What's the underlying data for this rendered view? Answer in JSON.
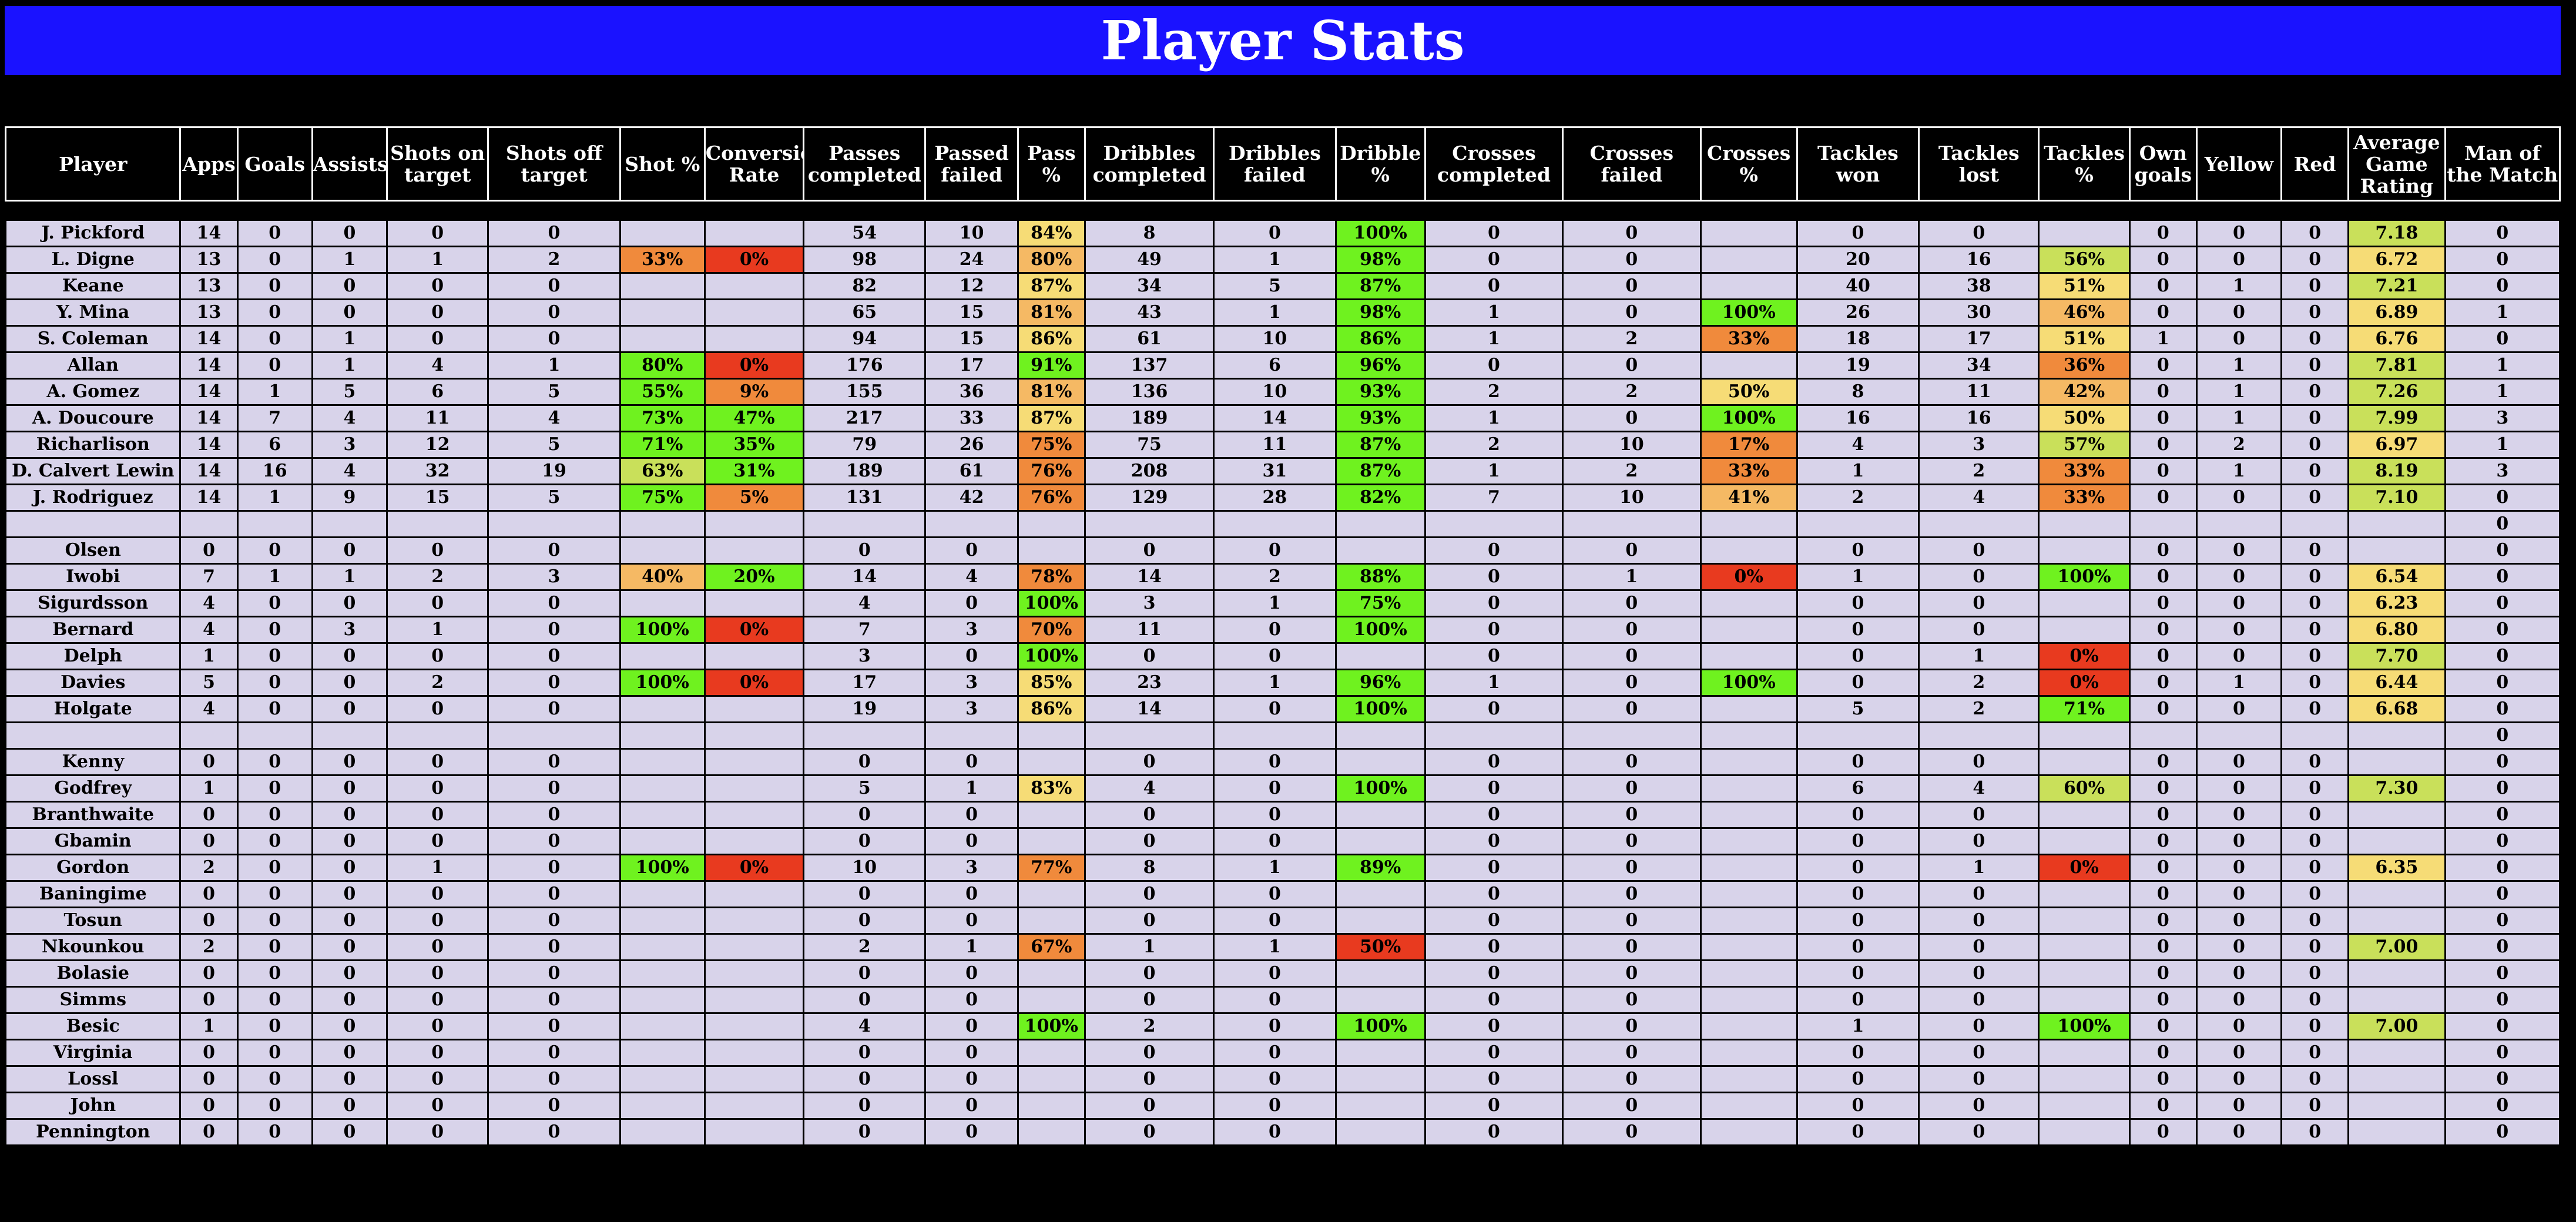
{
  "title": "Player Stats",
  "columns": [
    "Player",
    "Apps",
    "Goals",
    "Assists",
    "Shots on target",
    "Shots off target",
    "Shot %",
    "Conversion Rate",
    "Passes completed",
    "Passed failed",
    "Pass %",
    "Dribbles completed",
    "Dribbles failed",
    "Dribble %",
    "Crosses completed",
    "Crosses failed",
    "Crosses %",
    "Tackles won",
    "Tackles lost",
    "Tackles %",
    "Own goals",
    "Yellow",
    "Red",
    "Average Game Rating",
    "Man of the Match"
  ],
  "rows": [
    [
      "J. Pickford",
      "14",
      "0",
      "0",
      "0",
      "0",
      "",
      "",
      "54",
      "10",
      "84%",
      "8",
      "0",
      "100%",
      "0",
      "0",
      "",
      "0",
      "0",
      "",
      "0",
      "0",
      "0",
      "7.18",
      "0"
    ],
    [
      "L. Digne",
      "13",
      "0",
      "1",
      "1",
      "2",
      "33%",
      "0%",
      "98",
      "24",
      "80%",
      "49",
      "1",
      "98%",
      "0",
      "0",
      "",
      "20",
      "16",
      "56%",
      "0",
      "0",
      "0",
      "6.72",
      "0"
    ],
    [
      "Keane",
      "13",
      "0",
      "0",
      "0",
      "0",
      "",
      "",
      "82",
      "12",
      "87%",
      "34",
      "5",
      "87%",
      "0",
      "0",
      "",
      "40",
      "38",
      "51%",
      "0",
      "1",
      "0",
      "7.21",
      "0"
    ],
    [
      "Y. Mina",
      "13",
      "0",
      "0",
      "0",
      "0",
      "",
      "",
      "65",
      "15",
      "81%",
      "43",
      "1",
      "98%",
      "1",
      "0",
      "100%",
      "26",
      "30",
      "46%",
      "0",
      "0",
      "0",
      "6.89",
      "1"
    ],
    [
      "S. Coleman",
      "14",
      "0",
      "1",
      "0",
      "0",
      "",
      "",
      "94",
      "15",
      "86%",
      "61",
      "10",
      "86%",
      "1",
      "2",
      "33%",
      "18",
      "17",
      "51%",
      "1",
      "0",
      "0",
      "6.76",
      "0"
    ],
    [
      "Allan",
      "14",
      "0",
      "1",
      "4",
      "1",
      "80%",
      "0%",
      "176",
      "17",
      "91%",
      "137",
      "6",
      "96%",
      "0",
      "0",
      "",
      "19",
      "34",
      "36%",
      "0",
      "1",
      "0",
      "7.81",
      "1"
    ],
    [
      "A. Gomez",
      "14",
      "1",
      "5",
      "6",
      "5",
      "55%",
      "9%",
      "155",
      "36",
      "81%",
      "136",
      "10",
      "93%",
      "2",
      "2",
      "50%",
      "8",
      "11",
      "42%",
      "0",
      "1",
      "0",
      "7.26",
      "1"
    ],
    [
      "A. Doucoure",
      "14",
      "7",
      "4",
      "11",
      "4",
      "73%",
      "47%",
      "217",
      "33",
      "87%",
      "189",
      "14",
      "93%",
      "1",
      "0",
      "100%",
      "16",
      "16",
      "50%",
      "0",
      "1",
      "0",
      "7.99",
      "3"
    ],
    [
      "Richarlison",
      "14",
      "6",
      "3",
      "12",
      "5",
      "71%",
      "35%",
      "79",
      "26",
      "75%",
      "75",
      "11",
      "87%",
      "2",
      "10",
      "17%",
      "4",
      "3",
      "57%",
      "0",
      "2",
      "0",
      "6.97",
      "1"
    ],
    [
      "D. Calvert Lewin",
      "14",
      "16",
      "4",
      "32",
      "19",
      "63%",
      "31%",
      "189",
      "61",
      "76%",
      "208",
      "31",
      "87%",
      "1",
      "2",
      "33%",
      "1",
      "2",
      "33%",
      "0",
      "1",
      "0",
      "8.19",
      "3"
    ],
    [
      "J. Rodriguez",
      "14",
      "1",
      "9",
      "15",
      "5",
      "75%",
      "5%",
      "131",
      "42",
      "76%",
      "129",
      "28",
      "82%",
      "7",
      "10",
      "41%",
      "2",
      "4",
      "33%",
      "0",
      "0",
      "0",
      "7.10",
      "0"
    ],
    [
      "",
      "",
      "",
      "",
      "",
      "",
      "",
      "",
      "",
      "",
      "",
      "",
      "",
      "",
      "",
      "",
      "",
      "",
      "",
      "",
      "",
      "",
      "",
      "",
      "0"
    ],
    [
      "Olsen",
      "0",
      "0",
      "0",
      "0",
      "0",
      "",
      "",
      "0",
      "0",
      "",
      "0",
      "0",
      "",
      "0",
      "0",
      "",
      "0",
      "0",
      "",
      "0",
      "0",
      "0",
      "",
      "0"
    ],
    [
      "Iwobi",
      "7",
      "1",
      "1",
      "2",
      "3",
      "40%",
      "20%",
      "14",
      "4",
      "78%",
      "14",
      "2",
      "88%",
      "0",
      "1",
      "0%",
      "1",
      "0",
      "100%",
      "0",
      "0",
      "0",
      "6.54",
      "0"
    ],
    [
      "Sigurdsson",
      "4",
      "0",
      "0",
      "0",
      "0",
      "",
      "",
      "4",
      "0",
      "100%",
      "3",
      "1",
      "75%",
      "0",
      "0",
      "",
      "0",
      "0",
      "",
      "0",
      "0",
      "0",
      "6.23",
      "0"
    ],
    [
      "Bernard",
      "4",
      "0",
      "3",
      "1",
      "0",
      "100%",
      "0%",
      "7",
      "3",
      "70%",
      "11",
      "0",
      "100%",
      "0",
      "0",
      "",
      "0",
      "0",
      "",
      "0",
      "0",
      "0",
      "6.80",
      "0"
    ],
    [
      "Delph",
      "1",
      "0",
      "0",
      "0",
      "0",
      "",
      "",
      "3",
      "0",
      "100%",
      "0",
      "0",
      "",
      "0",
      "0",
      "",
      "0",
      "1",
      "0%",
      "0",
      "0",
      "0",
      "7.70",
      "0"
    ],
    [
      "Davies",
      "5",
      "0",
      "0",
      "2",
      "0",
      "100%",
      "0%",
      "17",
      "3",
      "85%",
      "23",
      "1",
      "96%",
      "1",
      "0",
      "100%",
      "0",
      "2",
      "0%",
      "0",
      "1",
      "0",
      "6.44",
      "0"
    ],
    [
      "Holgate",
      "4",
      "0",
      "0",
      "0",
      "0",
      "",
      "",
      "19",
      "3",
      "86%",
      "14",
      "0",
      "100%",
      "0",
      "0",
      "",
      "5",
      "2",
      "71%",
      "0",
      "0",
      "0",
      "6.68",
      "0"
    ],
    [
      "",
      "",
      "",
      "",
      "",
      "",
      "",
      "",
      "",
      "",
      "",
      "",
      "",
      "",
      "",
      "",
      "",
      "",
      "",
      "",
      "",
      "",
      "",
      "",
      "0"
    ],
    [
      "Kenny",
      "0",
      "0",
      "0",
      "0",
      "0",
      "",
      "",
      "0",
      "0",
      "",
      "0",
      "0",
      "",
      "0",
      "0",
      "",
      "0",
      "0",
      "",
      "0",
      "0",
      "0",
      "",
      "0"
    ],
    [
      "Godfrey",
      "1",
      "0",
      "0",
      "0",
      "0",
      "",
      "",
      "5",
      "1",
      "83%",
      "4",
      "0",
      "100%",
      "0",
      "0",
      "",
      "6",
      "4",
      "60%",
      "0",
      "0",
      "0",
      "7.30",
      "0"
    ],
    [
      "Branthwaite",
      "0",
      "0",
      "0",
      "0",
      "0",
      "",
      "",
      "0",
      "0",
      "",
      "0",
      "0",
      "",
      "0",
      "0",
      "",
      "0",
      "0",
      "",
      "0",
      "0",
      "0",
      "",
      "0"
    ],
    [
      "Gbamin",
      "0",
      "0",
      "0",
      "0",
      "0",
      "",
      "",
      "0",
      "0",
      "",
      "0",
      "0",
      "",
      "0",
      "0",
      "",
      "0",
      "0",
      "",
      "0",
      "0",
      "0",
      "",
      "0"
    ],
    [
      "Gordon",
      "2",
      "0",
      "0",
      "1",
      "0",
      "100%",
      "0%",
      "10",
      "3",
      "77%",
      "8",
      "1",
      "89%",
      "0",
      "0",
      "",
      "0",
      "1",
      "0%",
      "0",
      "0",
      "0",
      "6.35",
      "0"
    ],
    [
      "Baningime",
      "0",
      "0",
      "0",
      "0",
      "0",
      "",
      "",
      "0",
      "0",
      "",
      "0",
      "0",
      "",
      "0",
      "0",
      "",
      "0",
      "0",
      "",
      "0",
      "0",
      "0",
      "",
      "0"
    ],
    [
      "Tosun",
      "0",
      "0",
      "0",
      "0",
      "0",
      "",
      "",
      "0",
      "0",
      "",
      "0",
      "0",
      "",
      "0",
      "0",
      "",
      "0",
      "0",
      "",
      "0",
      "0",
      "0",
      "",
      "0"
    ],
    [
      "Nkounkou",
      "2",
      "0",
      "0",
      "0",
      "0",
      "",
      "",
      "2",
      "1",
      "67%",
      "1",
      "1",
      "50%",
      "0",
      "0",
      "",
      "0",
      "0",
      "",
      "0",
      "0",
      "0",
      "7.00",
      "0"
    ],
    [
      "Bolasie",
      "0",
      "0",
      "0",
      "0",
      "0",
      "",
      "",
      "0",
      "0",
      "",
      "0",
      "0",
      "",
      "0",
      "0",
      "",
      "0",
      "0",
      "",
      "0",
      "0",
      "0",
      "",
      "0"
    ],
    [
      "Simms",
      "0",
      "0",
      "0",
      "0",
      "0",
      "",
      "",
      "0",
      "0",
      "",
      "0",
      "0",
      "",
      "0",
      "0",
      "",
      "0",
      "0",
      "",
      "0",
      "0",
      "0",
      "",
      "0"
    ],
    [
      "Besic",
      "1",
      "0",
      "0",
      "0",
      "0",
      "",
      "",
      "4",
      "0",
      "100%",
      "2",
      "0",
      "100%",
      "0",
      "0",
      "",
      "1",
      "0",
      "100%",
      "0",
      "0",
      "0",
      "7.00",
      "0"
    ],
    [
      "Virginia",
      "0",
      "0",
      "0",
      "0",
      "0",
      "",
      "",
      "0",
      "0",
      "",
      "0",
      "0",
      "",
      "0",
      "0",
      "",
      "0",
      "0",
      "",
      "0",
      "0",
      "0",
      "",
      "0"
    ],
    [
      "Lossl",
      "0",
      "0",
      "0",
      "0",
      "0",
      "",
      "",
      "0",
      "0",
      "",
      "0",
      "0",
      "",
      "0",
      "0",
      "",
      "0",
      "0",
      "",
      "0",
      "0",
      "0",
      "",
      "0"
    ],
    [
      "John",
      "0",
      "0",
      "0",
      "0",
      "0",
      "",
      "",
      "0",
      "0",
      "",
      "0",
      "0",
      "",
      "0",
      "0",
      "",
      "0",
      "0",
      "",
      "0",
      "0",
      "0",
      "",
      "0"
    ],
    [
      "Pennington",
      "0",
      "0",
      "0",
      "0",
      "0",
      "",
      "",
      "0",
      "0",
      "",
      "0",
      "0",
      "",
      "0",
      "0",
      "",
      "0",
      "0",
      "",
      "0",
      "0",
      "0",
      "",
      "0"
    ]
  ],
  "colors": {
    "title_bar": "#1a12ff",
    "cell_background": "#d8d3ea",
    "red": "#e83a1f",
    "orange": "#f08a3c",
    "light_orange": "#f5b964",
    "yellow": "#f6dc76",
    "yellow_green": "#c9e05a",
    "green": "#6ff21f"
  }
}
